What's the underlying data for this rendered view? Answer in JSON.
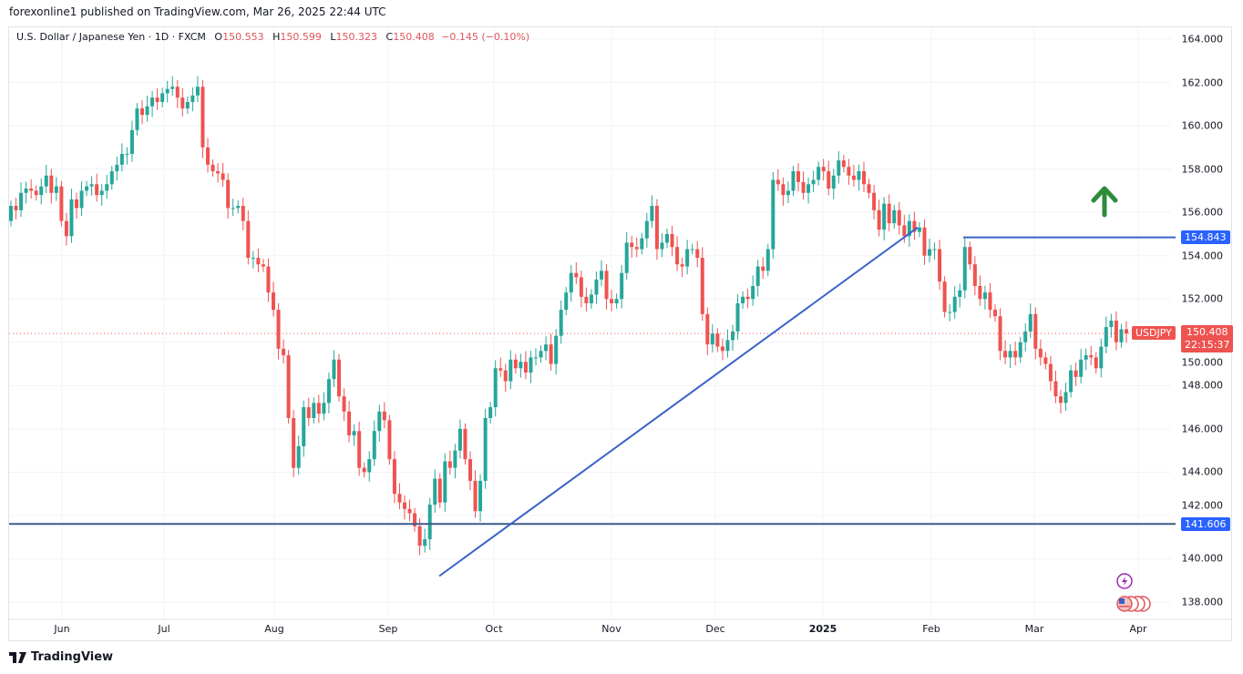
{
  "header": {
    "published": "forexonline1 published on TradingView.com, Mar 26, 2025 22:44 UTC",
    "symbol_desc": "U.S. Dollar / Japanese Yen · 1D · FXCM",
    "o_label": "O",
    "o": "150.553",
    "h_label": "H",
    "h": "150.599",
    "l_label": "L",
    "l": "150.323",
    "c_label": "C",
    "c": "150.408",
    "change": "−0.145 (−0.10%)"
  },
  "price_axis": [
    "164.000",
    "162.000",
    "160.000",
    "158.000",
    "156.000",
    "154.000",
    "152.000",
    "150.000",
    "148.000",
    "146.000",
    "144.000",
    "142.000",
    "140.000",
    "138.000"
  ],
  "time_axis": [
    "Jun",
    "Jul",
    "Aug",
    "Sep",
    "Oct",
    "Nov",
    "Dec",
    "2025",
    "Feb",
    "Mar",
    "Apr"
  ],
  "tags": {
    "resistance": "154.843",
    "support": "141.606",
    "symbol": "USDJPY",
    "last_price": "150.408",
    "countdown": "22:15:37"
  },
  "footer": {
    "brand": "TradingView"
  },
  "colors": {
    "up": "#26a69a",
    "down": "#ef5350",
    "line": "#2962ff",
    "trend": "#3a62c8",
    "arrow": "#2e8b3a",
    "last": "#ef5350"
  },
  "chart_data": {
    "type": "candlestick",
    "title": "U.S. Dollar / Japanese Yen · 1D · FXCM",
    "ylim": [
      137.2,
      164.6
    ],
    "first_open": 155.6,
    "closes": [
      156.3,
      156.1,
      156.9,
      157.1,
      157.0,
      156.8,
      157.2,
      157.7,
      156.9,
      157.2,
      155.6,
      154.9,
      156.6,
      156.2,
      157.0,
      157.2,
      157.3,
      156.8,
      157.0,
      157.3,
      157.9,
      158.2,
      158.7,
      158.7,
      159.8,
      160.8,
      160.5,
      160.9,
      161.3,
      161.1,
      161.5,
      161.7,
      161.8,
      161.3,
      160.8,
      161.1,
      161.4,
      161.8,
      159.0,
      158.2,
      157.9,
      157.8,
      157.5,
      156.2,
      156.2,
      156.3,
      155.6,
      153.9,
      153.9,
      153.6,
      153.5,
      152.3,
      151.5,
      149.7,
      149.4,
      146.5,
      144.2,
      145.2,
      147.0,
      146.5,
      147.2,
      146.7,
      147.2,
      148.3,
      149.2,
      147.5,
      146.8,
      145.7,
      145.9,
      144.2,
      144.0,
      144.6,
      145.9,
      146.8,
      146.4,
      144.6,
      143.0,
      142.6,
      142.3,
      142.1,
      141.5,
      140.6,
      140.9,
      142.5,
      143.7,
      142.6,
      144.5,
      144.2,
      145.0,
      146.0,
      144.6,
      143.6,
      142.2,
      143.6,
      146.5,
      147.0,
      148.8,
      148.7,
      148.2,
      149.2,
      148.8,
      149.1,
      148.6,
      149.3,
      149.3,
      149.6,
      149.9,
      149.0,
      150.3,
      151.5,
      152.3,
      153.2,
      153.0,
      152.1,
      151.8,
      152.2,
      152.9,
      153.3,
      152.0,
      151.8,
      152.0,
      153.2,
      154.6,
      154.4,
      154.3,
      154.8,
      155.6,
      156.3,
      154.3,
      154.6,
      155.0,
      154.4,
      153.6,
      153.5,
      154.3,
      154.3,
      153.9,
      151.3,
      149.9,
      150.4,
      149.8,
      149.6,
      150.1,
      150.5,
      151.8,
      152.1,
      152.0,
      152.6,
      153.5,
      153.3,
      154.3,
      157.5,
      157.3,
      156.8,
      157.0,
      157.9,
      157.4,
      156.9,
      157.3,
      157.5,
      158.1,
      157.9,
      157.1,
      157.7,
      158.4,
      158.1,
      157.7,
      157.5,
      157.9,
      157.3,
      156.9,
      156.1,
      155.2,
      156.4,
      155.5,
      156.1,
      155.4,
      154.9,
      155.6,
      155.1,
      155.3,
      154.0,
      154.3,
      154.3,
      152.8,
      151.4,
      151.4,
      152.1,
      152.4,
      154.4,
      153.6,
      152.6,
      152.0,
      152.3,
      151.5,
      151.2,
      149.6,
      149.3,
      149.6,
      149.3,
      150.0,
      150.5,
      151.3,
      149.7,
      149.3,
      149.0,
      148.2,
      147.5,
      147.2,
      147.7,
      148.7,
      148.4,
      149.2,
      149.4,
      149.3,
      148.8,
      149.8,
      150.7,
      151.0,
      150.0,
      150.6,
      150.408
    ],
    "annotations": {
      "support_price": 141.606,
      "resistance_price": 154.843,
      "trendline": {
        "start_price": 139.2,
        "end_price": 155.3
      },
      "last_price": 150.408,
      "direction": "up"
    }
  }
}
